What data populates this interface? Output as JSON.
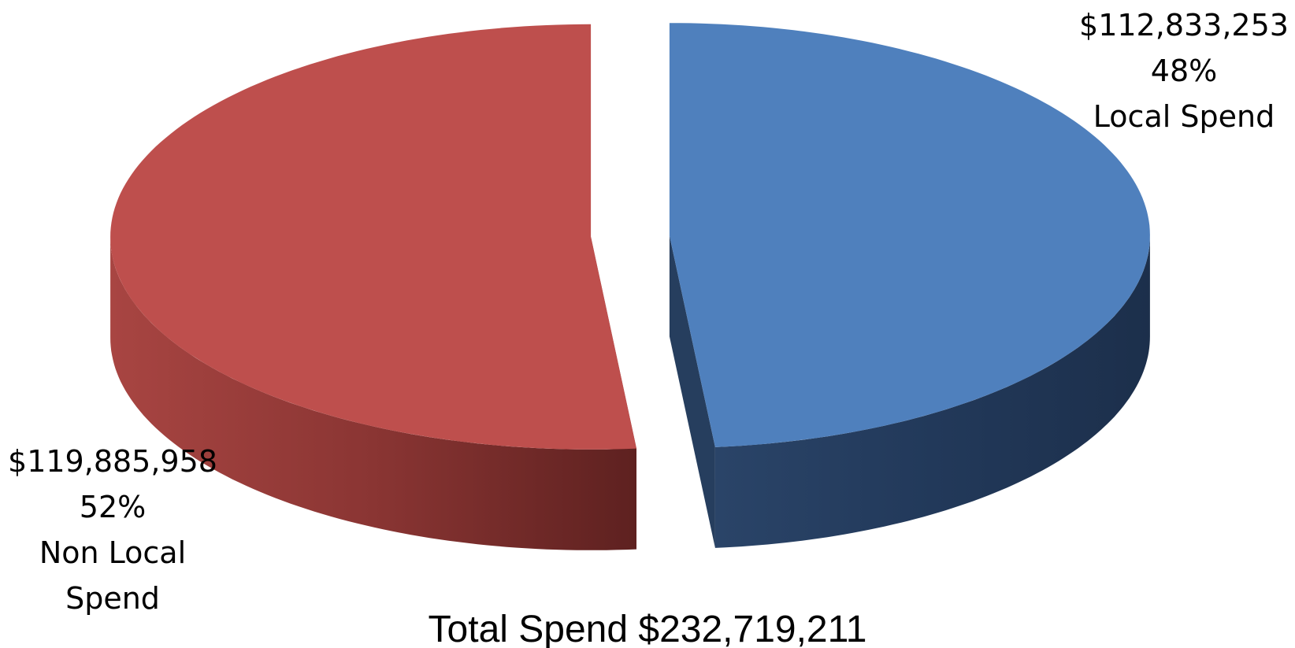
{
  "chart_data": {
    "type": "pie",
    "style": "3d-exploded",
    "slices": [
      {
        "name": "Non Local Spend",
        "value": 119885958,
        "value_label": "$119,885,958",
        "percent": 52,
        "percent_label": "52%",
        "label_lines": [
          "Non Local",
          "Spend"
        ],
        "color": "#BE4F4D",
        "side_color": "#8A3432",
        "side_dark": "#612120"
      },
      {
        "name": "Local Spend",
        "value": 112833253,
        "value_label": "$112,833,253",
        "percent": 48,
        "percent_label": "48%",
        "label_lines": [
          "Local Spend"
        ],
        "color": "#4F80BD",
        "side_color": "#263E5E",
        "side_dark": "#1B2D46"
      }
    ],
    "total": 232719211,
    "total_label": "Total Spend $232,719,211",
    "legend": "none"
  }
}
